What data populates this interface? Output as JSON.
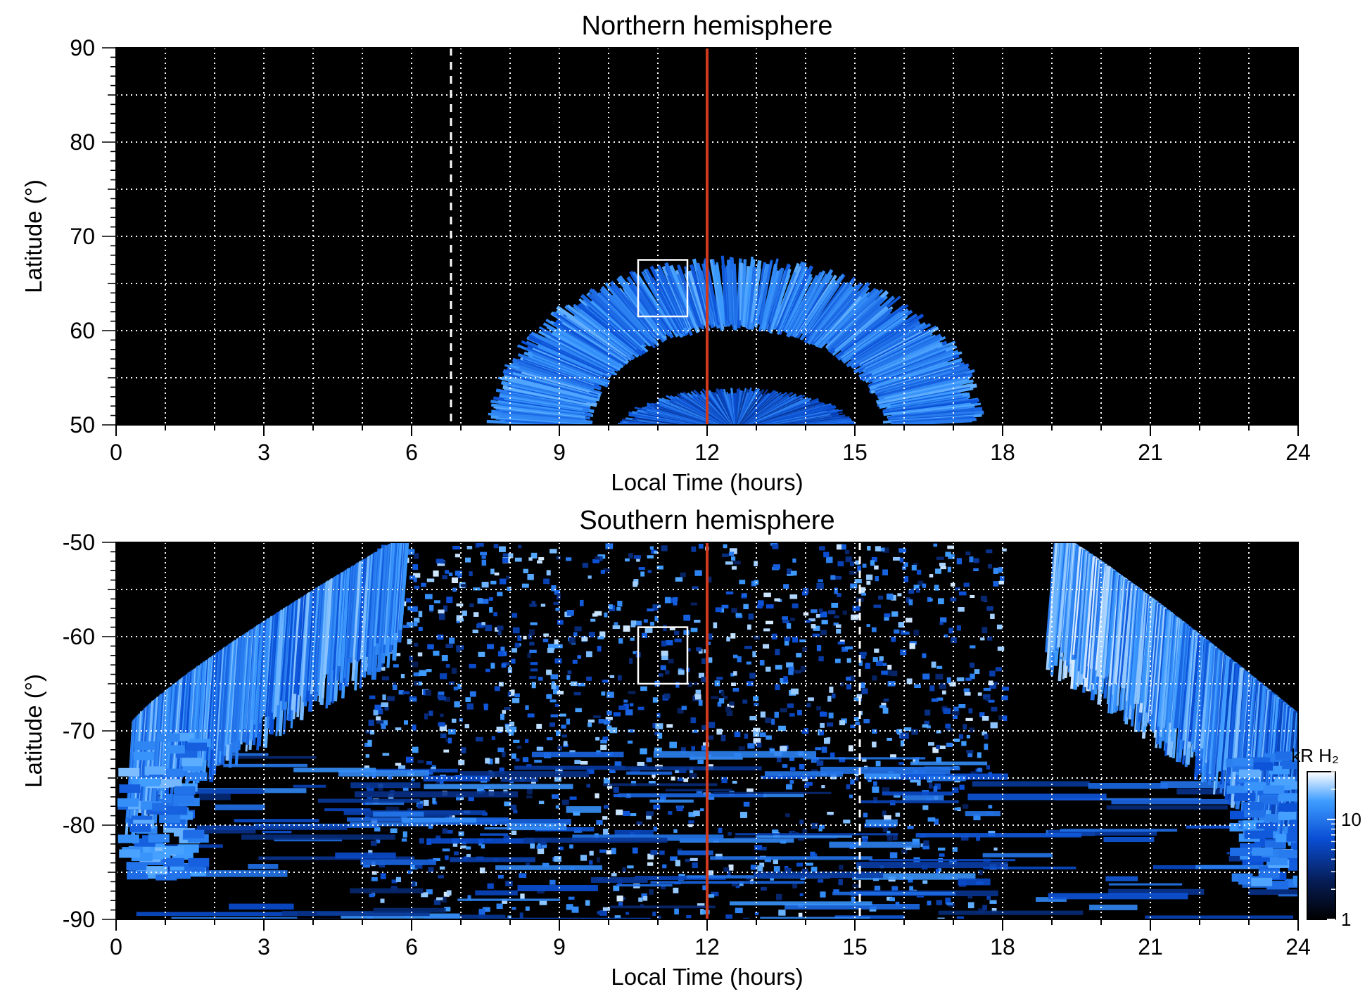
{
  "chart_data": [
    {
      "type": "heatmap",
      "title": "Northern hemisphere",
      "xlabel": "Local Time (hours)",
      "ylabel": "Latitude (°)",
      "xlim": [
        0,
        24
      ],
      "ylim": [
        50,
        90
      ],
      "xticks": [
        0,
        3,
        6,
        9,
        12,
        15,
        18,
        21,
        24
      ],
      "yticks": [
        50,
        60,
        70,
        80,
        90
      ],
      "grid": true,
      "background": "#000000",
      "noon_line_x": 12,
      "noon_line_color": "#d03a1e",
      "dashed_line_x": 6.8,
      "highlight_box": {
        "x": [
          10.6,
          11.6
        ],
        "y": [
          61.5,
          67.5
        ]
      },
      "emission_bands": [
        {
          "name": "",
          "center": [
            12.5,
            50
          ],
          "lat_extent": [
            60,
            68
          ],
          "lt_extent": [
            8.4,
            16.4
          ]
        },
        {
          "name": "",
          "center": [
            12.5,
            50
          ],
          "lat_extent": [
            50,
            54
          ],
          "lt_extent": [
            10.7,
            14.4
          ]
        }
      ]
    },
    {
      "type": "heatmap",
      "title": "Southern hemisphere",
      "xlabel": "Local Time (hours)",
      "ylabel": "Latitude (°)",
      "xlim": [
        0,
        24
      ],
      "ylim": [
        -90,
        -50
      ],
      "xticks": [
        0,
        3,
        6,
        9,
        12,
        15,
        18,
        21,
        24
      ],
      "yticks": [
        -90,
        -80,
        -70,
        -60,
        -50
      ],
      "grid": true,
      "background": "#000000",
      "noon_line_x": 12,
      "noon_line_color": "#d03a1e",
      "dashed_line_x": 15.1,
      "highlight_box": {
        "x": [
          10.6,
          11.6
        ],
        "y": [
          -65,
          -59
        ]
      },
      "colorbar": {
        "label": "kR H₂",
        "scale": "log",
        "range": [
          1,
          30
        ],
        "ticks": [
          1,
          10
        ],
        "tick_labels": [
          "1",
          "10"
        ],
        "colors": [
          "#000000",
          "#061c52",
          "#0a4fd6",
          "#3e9cff",
          "#ffffff"
        ]
      }
    }
  ]
}
